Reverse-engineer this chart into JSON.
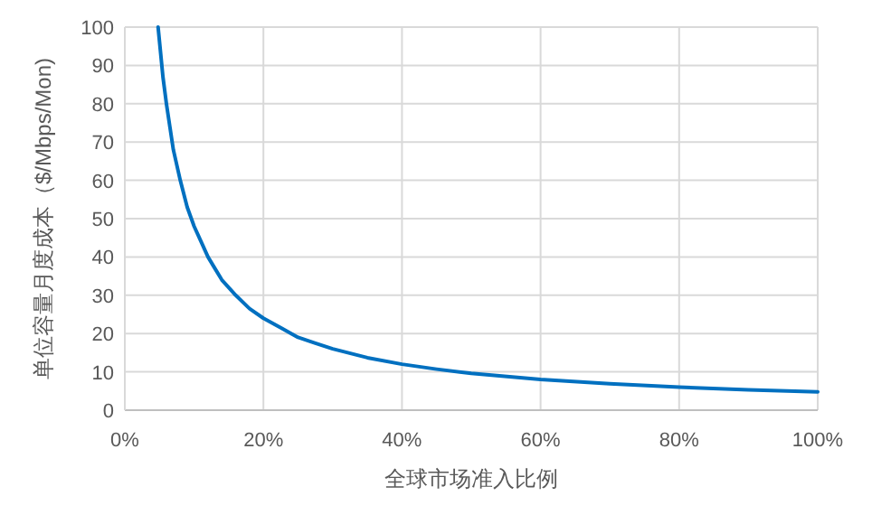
{
  "chart_data": {
    "type": "line",
    "xlabel": "全球市场准入比例",
    "ylabel": "单位容量月度成本（$/Mbps/Mon)",
    "x": [
      4.8,
      5.5,
      6,
      6.5,
      7,
      7.5,
      8,
      9,
      10,
      11,
      12,
      13,
      14,
      16,
      18,
      20,
      22.5,
      25,
      27.5,
      30,
      35,
      40,
      45,
      50,
      60,
      70,
      80,
      90,
      100
    ],
    "series": [
      {
        "color": "#0070c0",
        "values": [
          100,
          87,
          80,
          74,
          68,
          64,
          60,
          53,
          48,
          44,
          40,
          37,
          34,
          30,
          26.5,
          24,
          21.5,
          19,
          17.5,
          16,
          13.7,
          12,
          10.7,
          9.6,
          8,
          6.9,
          6,
          5.3,
          4.8
        ]
      }
    ],
    "xlim": [
      0,
      100
    ],
    "ylim": [
      0,
      100
    ],
    "xticks": [
      {
        "value": 0,
        "label": "0%"
      },
      {
        "value": 20,
        "label": "20%"
      },
      {
        "value": 40,
        "label": "40%"
      },
      {
        "value": 60,
        "label": "60%"
      },
      {
        "value": 80,
        "label": "80%"
      },
      {
        "value": 100,
        "label": "100%"
      }
    ],
    "yticks": [
      0,
      10,
      20,
      30,
      40,
      50,
      60,
      70,
      80,
      90,
      100
    ],
    "grid": true
  }
}
